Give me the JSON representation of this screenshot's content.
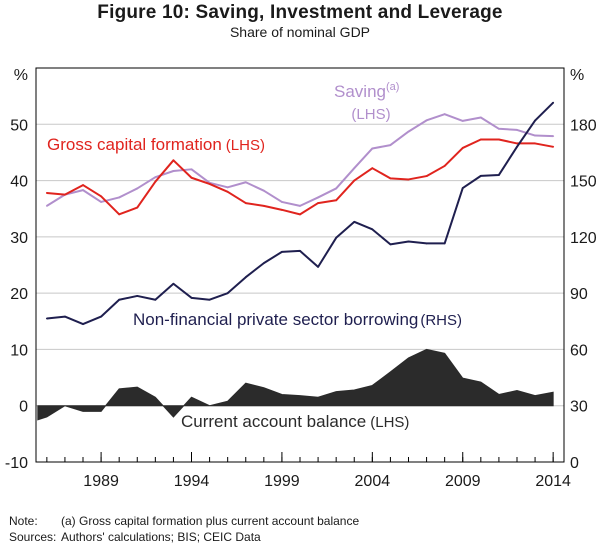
{
  "header": {
    "title": "Figure 10: Saving, Investment and Leverage",
    "subtitle": "Share of nominal GDP"
  },
  "notes": {
    "note_label": "Note:",
    "note_text": "(a) Gross capital formation plus current account balance",
    "sources_label": "Sources:",
    "sources_text": "Authors' calculations; BIS; CEIC Data"
  },
  "colors": {
    "saving": "#b18fcc",
    "gcf": "#e0241e",
    "borrowing": "#1f1f4f",
    "current_account": "#2b2b2b",
    "grid": "#c8c8c8"
  },
  "chart_data": {
    "type": "line",
    "x_ticks": [
      "1989",
      "1994",
      "1999",
      "2004",
      "2009",
      "2014"
    ],
    "x_range": [
      1985.4,
      2014.6
    ],
    "left_axis": {
      "unit": "%",
      "range": [
        -10,
        60
      ],
      "ticks": [
        "-10",
        "0",
        "10",
        "20",
        "30",
        "40",
        "50"
      ]
    },
    "right_axis": {
      "unit": "%",
      "range": [
        0,
        210
      ],
      "ticks": [
        "0",
        "30",
        "60",
        "90",
        "120",
        "150",
        "180"
      ]
    },
    "grid": true,
    "series": [
      {
        "name": "Saving",
        "label_main": "Saving",
        "label_sup": "(a)",
        "label_axis": "(LHS)",
        "axis": "left",
        "style": "line",
        "colorKey": "saving",
        "x": [
          1986,
          1987,
          1988,
          1989,
          1990,
          1991,
          1992,
          1993,
          1994,
          1995,
          1996,
          1997,
          1998,
          1999,
          2000,
          2001,
          2002,
          2003,
          2004,
          2005,
          2006,
          2007,
          2008,
          2009,
          2010,
          2011,
          2012,
          2013,
          2014
        ],
        "y": [
          35.5,
          37.5,
          38.3,
          36.2,
          37.0,
          38.6,
          40.6,
          41.7,
          42.0,
          39.6,
          38.8,
          39.7,
          38.2,
          36.2,
          35.5,
          37.0,
          38.6,
          42.2,
          45.7,
          46.3,
          48.7,
          50.7,
          51.8,
          50.6,
          51.2,
          49.2,
          49.0,
          48.0,
          47.9
        ]
      },
      {
        "name": "Gross capital formation",
        "label_main": "Gross capital formation",
        "label_axis": "(LHS)",
        "axis": "left",
        "style": "line",
        "colorKey": "gcf",
        "x": [
          1986,
          1987,
          1988,
          1989,
          1990,
          1991,
          1992,
          1993,
          1994,
          1995,
          1996,
          1997,
          1998,
          1999,
          2000,
          2001,
          2002,
          2003,
          2004,
          2005,
          2006,
          2007,
          2008,
          2009,
          2010,
          2011,
          2012,
          2013,
          2014
        ],
        "y": [
          37.8,
          37.5,
          39.2,
          37.2,
          34.0,
          35.2,
          39.8,
          43.6,
          40.5,
          39.4,
          38.0,
          36.0,
          35.5,
          34.8,
          34.0,
          36.0,
          36.5,
          40.0,
          42.2,
          40.4,
          40.2,
          40.8,
          42.6,
          45.8,
          47.3,
          47.3,
          46.6,
          46.6,
          46.0
        ]
      },
      {
        "name": "Non-financial private sector borrowing",
        "label_main": "Non-financial private sector borrowing",
        "label_axis": "(RHS)",
        "axis": "right",
        "style": "line",
        "colorKey": "borrowing",
        "x": [
          1986,
          1987,
          1988,
          1989,
          1990,
          1991,
          1992,
          1993,
          1994,
          1995,
          1996,
          1997,
          1998,
          1999,
          2000,
          2001,
          2002,
          2003,
          2004,
          2005,
          2006,
          2007,
          2008,
          2009,
          2010,
          2011,
          2012,
          2013,
          2014
        ],
        "y": [
          76.5,
          77.5,
          73.5,
          77.5,
          86.5,
          88.5,
          86.5,
          95.0,
          87.5,
          86.5,
          90.0,
          98.5,
          106.0,
          112.0,
          112.5,
          104.0,
          119.5,
          128.0,
          124.0,
          116.0,
          117.5,
          116.5,
          116.5,
          146.0,
          152.5,
          153.0,
          168.0,
          182.0,
          191.5
        ]
      },
      {
        "name": "Current account balance",
        "label_main": "Current account balance",
        "label_axis": "(LHS)",
        "axis": "left",
        "style": "area",
        "colorKey": "current_account",
        "x": [
          1985.5,
          1986,
          1987,
          1988,
          1989,
          1990,
          1991,
          1992,
          1993,
          1994,
          1995,
          1996,
          1997,
          1998,
          1999,
          2000,
          2001,
          2002,
          2003,
          2004,
          2005,
          2006,
          2007,
          2008,
          2009,
          2010,
          2011,
          2012,
          2013,
          2014
        ],
        "y": [
          -2.5,
          -2.0,
          0.0,
          -1.0,
          -1.0,
          3.0,
          3.3,
          1.5,
          -2.0,
          1.5,
          0.0,
          0.8,
          4.0,
          3.2,
          2.0,
          1.8,
          1.5,
          2.5,
          2.8,
          3.6,
          6.0,
          8.5,
          10.0,
          9.3,
          4.9,
          4.2,
          2.0,
          2.7,
          1.8,
          2.4
        ]
      }
    ]
  }
}
